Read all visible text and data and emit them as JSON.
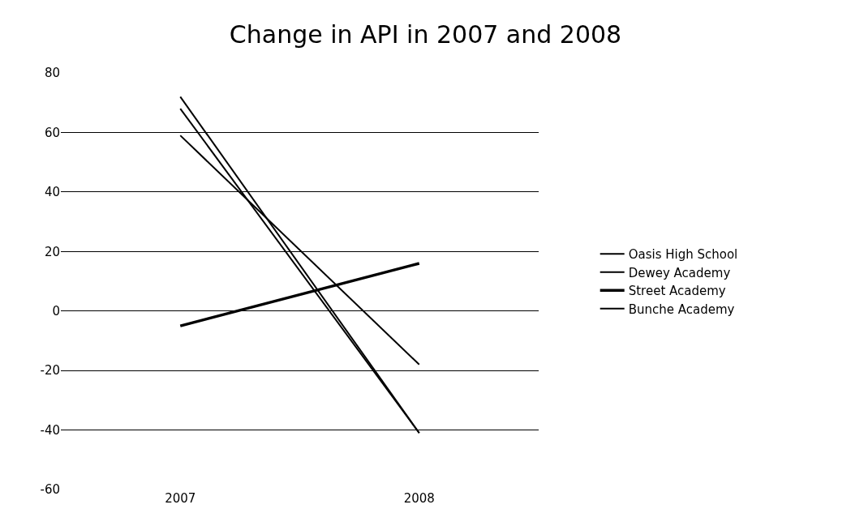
{
  "chart_data": {
    "type": "line",
    "title": "Change in API in 2007 and 2008",
    "categories": [
      "2007",
      "2008"
    ],
    "series": [
      {
        "name": "Oasis High School",
        "color": "#000000",
        "values": [
          72,
          -41
        ]
      },
      {
        "name": "Dewey Academy",
        "color": "#000000",
        "values": [
          68,
          -41
        ]
      },
      {
        "name": "Street Academy",
        "color": "#000000",
        "values": [
          -5,
          16
        ]
      },
      {
        "name": "Bunche Academy",
        "color": "#000000",
        "values": [
          59,
          -18
        ]
      }
    ],
    "ylim": [
      -60,
      80
    ],
    "yticks": [
      -60,
      -40,
      -20,
      0,
      20,
      40,
      60,
      80
    ],
    "grid": "y",
    "legend": "right",
    "marker": "none",
    "line_style": "solid"
  }
}
